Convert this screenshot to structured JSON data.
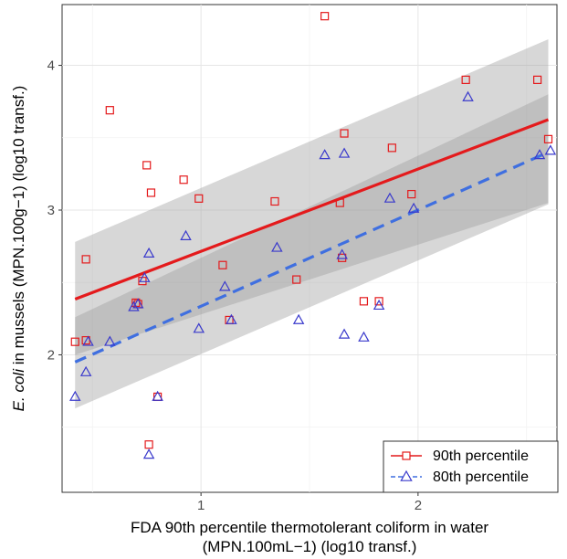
{
  "chart_data": {
    "type": "scatter",
    "xlabel_line1": "FDA 90th percentile thermotolerant coliform in water",
    "xlabel_line2": "(MPN.100mL−1) (log10 transf.)",
    "ylabel_italic": "E. coli",
    "ylabel_rest": " in mussels (MPN.100g−1) (log10 transf.)",
    "xlim": [
      0.36,
      2.64
    ],
    "ylim": [
      1.05,
      4.42
    ],
    "x_ticks": [
      1,
      2
    ],
    "y_ticks": [
      2,
      3,
      4
    ],
    "grid": true,
    "legend_position": "bottom-right",
    "colors": {
      "p90": "#e41a1c",
      "p80": "#3a3acc",
      "p80_line": "#3f6fe0",
      "band": "#9a9a9a"
    },
    "series": [
      {
        "name": "90th percentile",
        "marker": "square",
        "x": [
          0.42,
          0.47,
          0.47,
          0.58,
          0.7,
          0.71,
          0.73,
          0.75,
          0.76,
          0.77,
          0.8,
          0.92,
          0.99,
          1.1,
          1.13,
          1.34,
          1.44,
          1.57,
          1.64,
          1.65,
          1.66,
          1.75,
          1.82,
          1.88,
          1.97,
          2.22,
          2.55,
          2.6
        ],
        "y": [
          2.09,
          2.66,
          2.1,
          3.69,
          2.36,
          2.35,
          2.51,
          3.31,
          1.38,
          3.12,
          1.71,
          3.21,
          3.08,
          2.62,
          2.24,
          3.06,
          2.52,
          4.34,
          3.05,
          2.67,
          3.53,
          2.37,
          2.37,
          3.43,
          3.11,
          3.9,
          3.9,
          3.49
        ],
        "fit": {
          "x": [
            0.42,
            2.6
          ],
          "y": [
            2.385,
            3.625
          ],
          "ci_low": [
            2.0,
            3.05
          ],
          "ci_high": [
            2.78,
            4.18
          ]
        }
      },
      {
        "name": "80th percentile",
        "marker": "triangle",
        "x": [
          0.42,
          0.47,
          0.48,
          0.58,
          0.69,
          0.71,
          0.74,
          0.76,
          0.76,
          0.8,
          0.93,
          0.99,
          1.11,
          1.14,
          1.35,
          1.45,
          1.57,
          1.65,
          1.66,
          1.66,
          1.75,
          1.82,
          1.87,
          1.98,
          2.23,
          2.56,
          2.61
        ],
        "y": [
          1.71,
          1.88,
          2.09,
          2.09,
          2.33,
          2.35,
          2.53,
          1.31,
          2.7,
          1.71,
          2.82,
          2.18,
          2.47,
          2.24,
          2.74,
          2.24,
          3.38,
          2.69,
          2.14,
          3.39,
          2.12,
          2.34,
          3.08,
          3.01,
          3.78,
          3.38,
          3.41
        ],
        "fit": {
          "x": [
            0.42,
            2.6
          ],
          "y": [
            1.95,
            3.4
          ],
          "ci_low": [
            1.63,
            3.04
          ],
          "ci_high": [
            2.26,
            3.8
          ]
        }
      }
    ]
  }
}
